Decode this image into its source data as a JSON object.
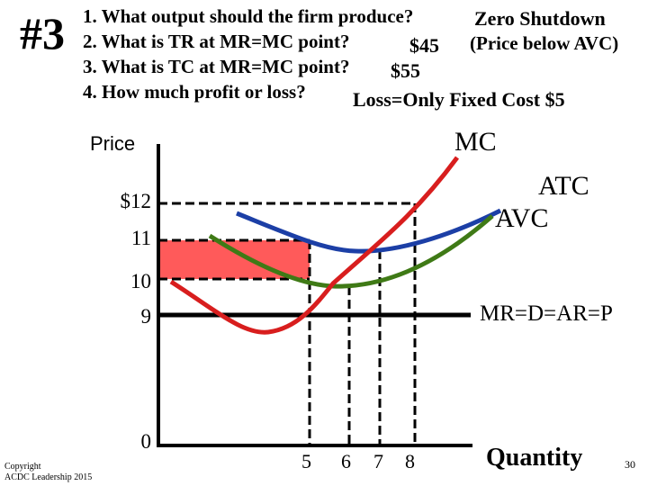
{
  "slide": {
    "number_label": "#3",
    "page_number": "30",
    "copyright_line1": "Copyright",
    "copyright_line2": "ACDC Leadership 2015"
  },
  "questions": [
    "1. What output should the firm produce?",
    "2. What is TR at MR=MC point?",
    "3. What is TC at MR=MC point?",
    "4. How much profit or loss?"
  ],
  "answers": {
    "a1": "Zero Shutdown",
    "a1_note": "(Price below AVC)",
    "a2": "$45",
    "a3": "$55",
    "a4": "Loss=Only Fixed Cost $5"
  },
  "axes": {
    "y_label": "Price",
    "x_label": "Quantity",
    "y_ticks": [
      "$12",
      "11",
      "10",
      "9",
      "0"
    ],
    "x_ticks": [
      "5",
      "6",
      "7",
      "8"
    ]
  },
  "curve_labels": {
    "mc": "MC",
    "atc": "ATC",
    "avc": "AVC",
    "mr": "MR=D=AR=P"
  },
  "colors": {
    "mc": "#d81e1e",
    "atc": "#1c3fa6",
    "avc": "#3f7a16",
    "loss_area": "#ff5a5a",
    "axis": "#000000"
  }
}
